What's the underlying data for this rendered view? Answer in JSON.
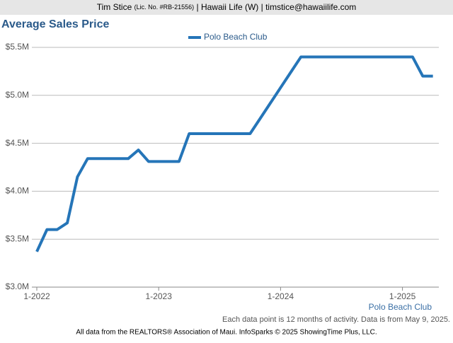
{
  "header": {
    "name": "Tim Stice",
    "license": "(Lic. No. #RB-21556)",
    "rest": "| Hawaii Life (W) | timstice@hawaiilife.com"
  },
  "chart_data": {
    "type": "line",
    "title": "Average Sales Price",
    "categories": [
      "1-2022",
      null,
      null,
      null,
      null,
      null,
      null,
      null,
      null,
      null,
      null,
      null,
      "1-2023",
      null,
      null,
      null,
      null,
      null,
      null,
      null,
      null,
      null,
      null,
      null,
      "1-2024",
      null,
      null,
      null,
      null,
      null,
      null,
      null,
      null,
      null,
      null,
      null,
      "1-2025",
      null,
      null,
      null
    ],
    "series": [
      {
        "name": "Polo Beach Club",
        "color": "#2575b8",
        "values": [
          3370000,
          3600000,
          3600000,
          3670000,
          4150000,
          4340000,
          4340000,
          4340000,
          4340000,
          4340000,
          4430000,
          4310000,
          4310000,
          4310000,
          4310000,
          4600000,
          4600000,
          4600000,
          4600000,
          4600000,
          4600000,
          4600000,
          4760000,
          4920000,
          5080000,
          5240000,
          5400000,
          5400000,
          5400000,
          5400000,
          5400000,
          5400000,
          5400000,
          5400000,
          5400000,
          5400000,
          5400000,
          5400000,
          5200000,
          5200000
        ]
      }
    ],
    "ylim": [
      3000000,
      5500000
    ],
    "yticks": [
      {
        "value": 3000000,
        "label": "$3.0M"
      },
      {
        "value": 3500000,
        "label": "$3.5M"
      },
      {
        "value": 4000000,
        "label": "$4.0M"
      },
      {
        "value": 4500000,
        "label": "$4.5M"
      },
      {
        "value": 5000000,
        "label": "$5.0M"
      },
      {
        "value": 5500000,
        "label": "$5.5M"
      }
    ],
    "grid": true,
    "x_label": "Polo Beach Club",
    "note": "Each data point is 12 months of activity. Data is from May 9, 2025.",
    "footer": "All data from the REALTORS® Association of Maui. InfoSparks © 2025 ShowingTime Plus, LLC."
  }
}
